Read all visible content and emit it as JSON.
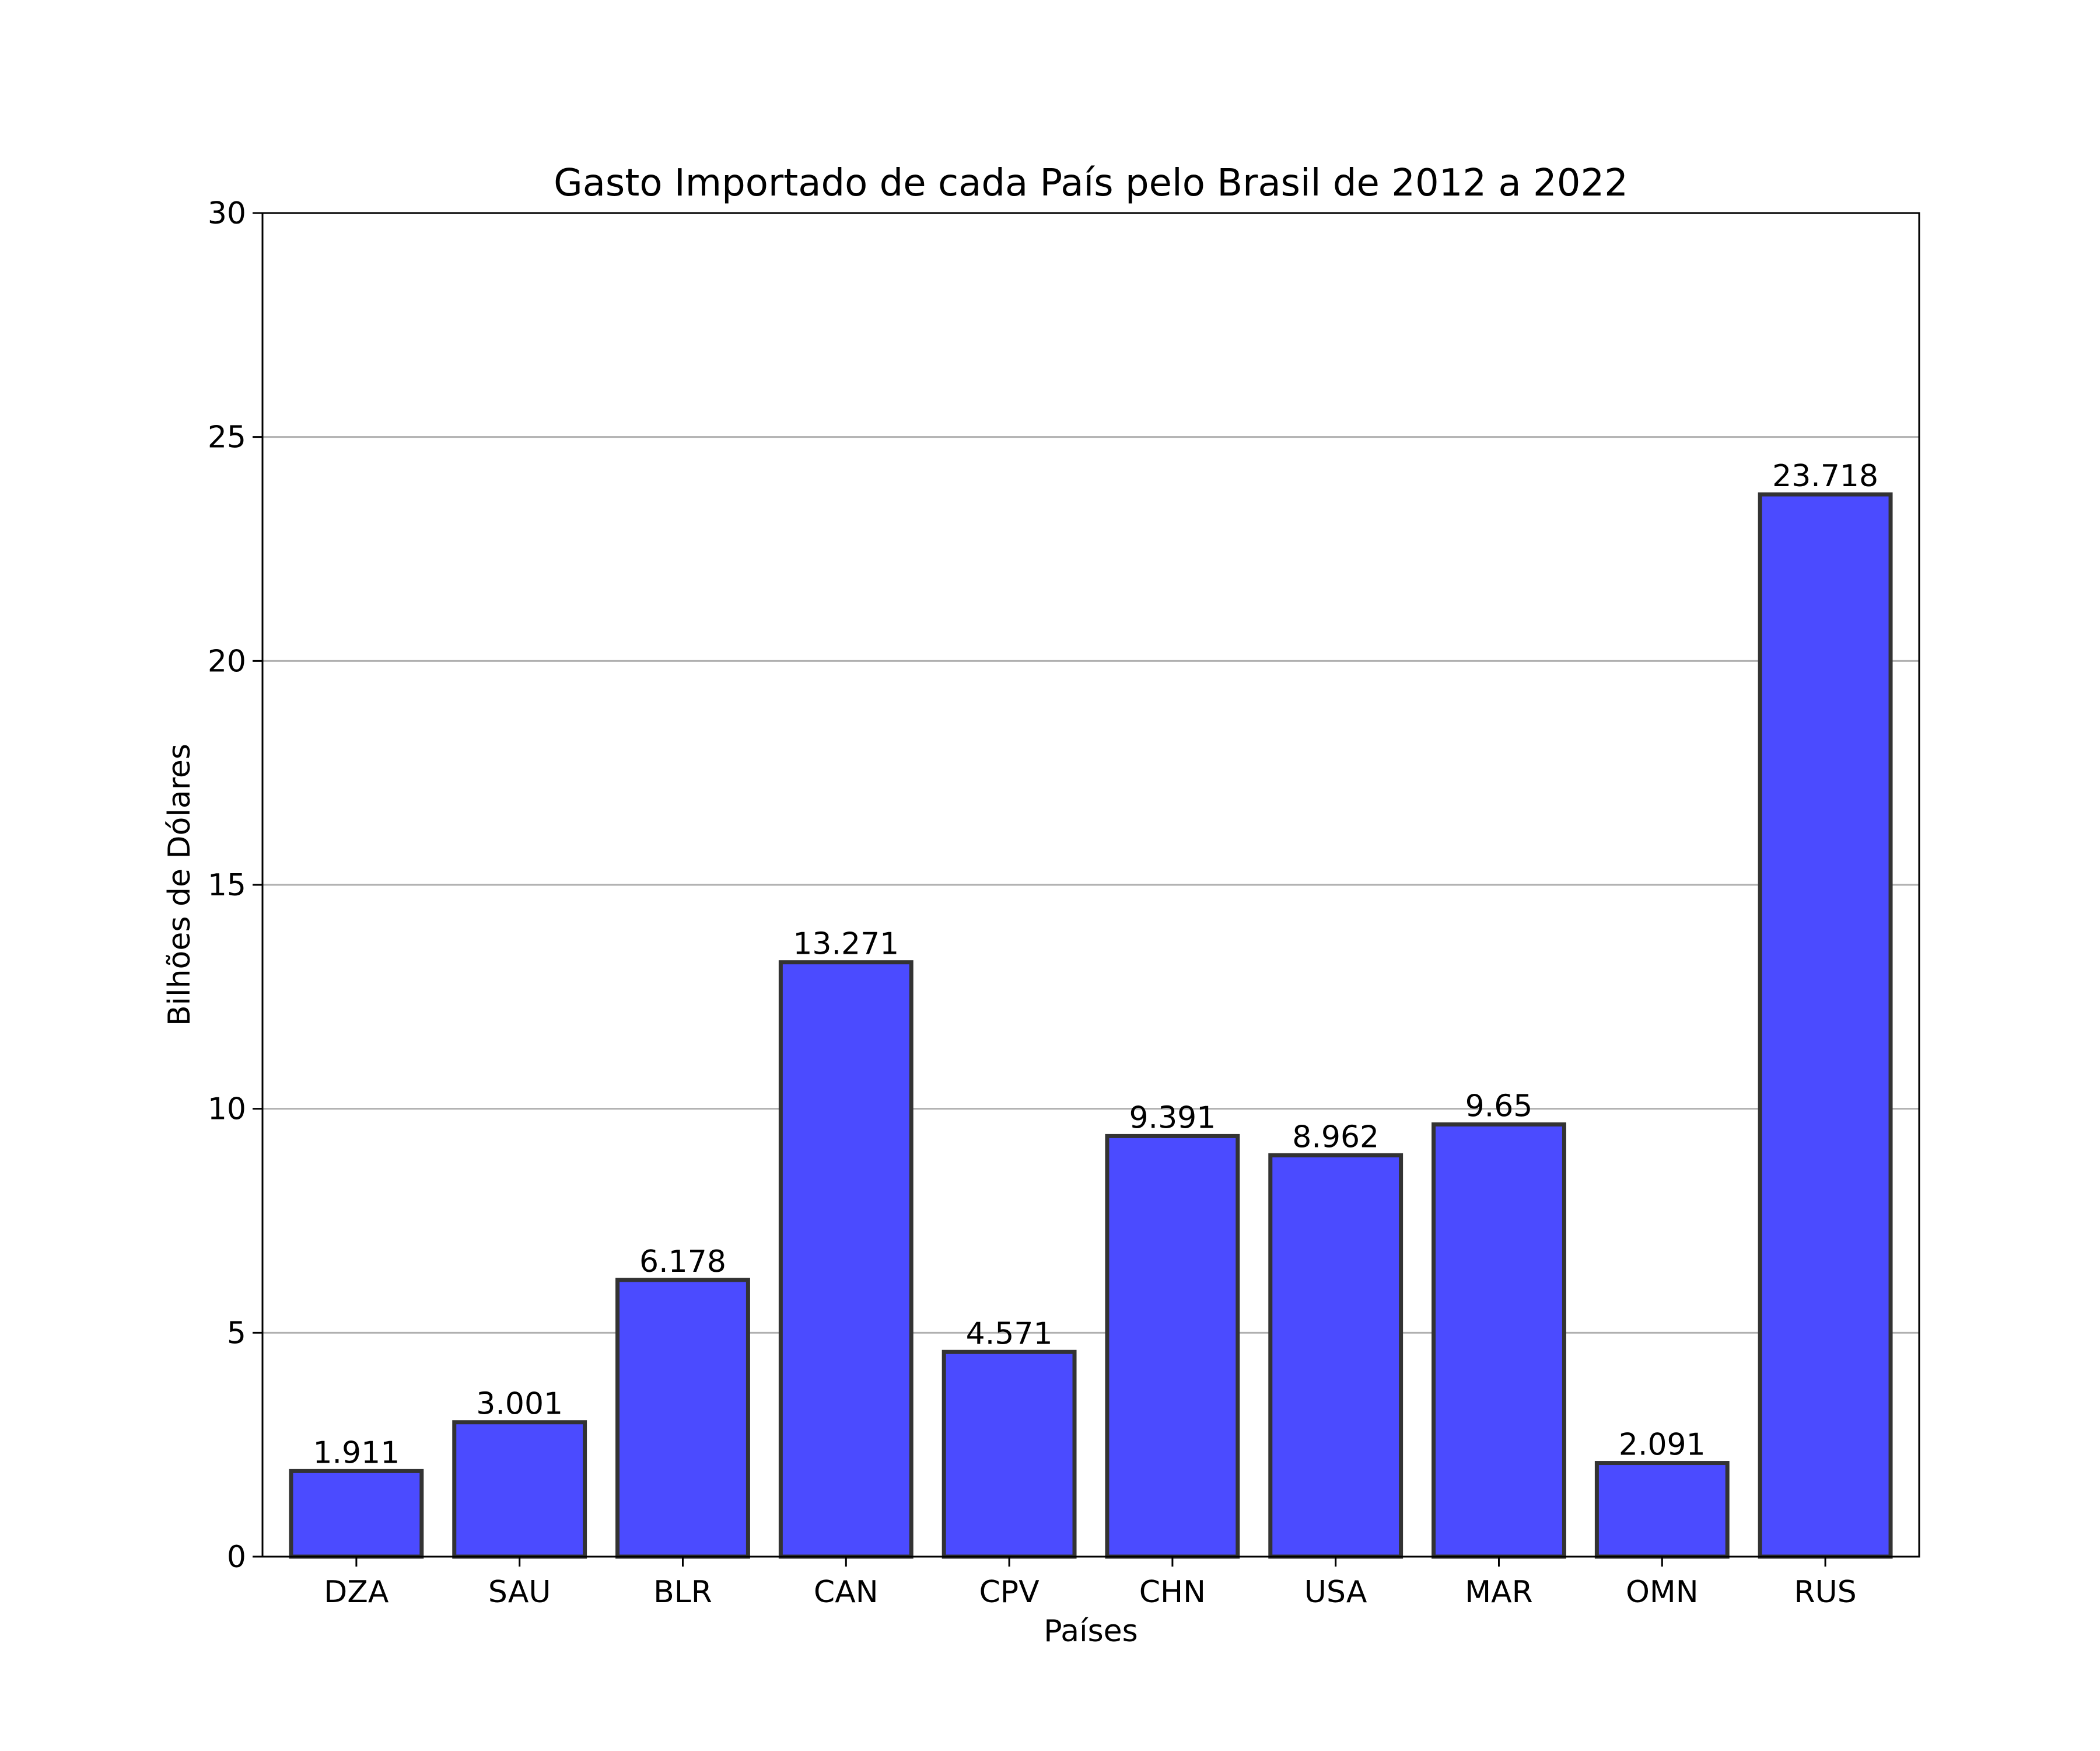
{
  "chart_data": {
    "type": "bar",
    "title": "Gasto Importado de cada País pelo Brasil de 2012 a 2022",
    "xlabel": "Países",
    "ylabel": "Bilhões de Dólares",
    "categories": [
      "DZA",
      "SAU",
      "BLR",
      "CAN",
      "CPV",
      "CHN",
      "USA",
      "MAR",
      "OMN",
      "RUS"
    ],
    "values": [
      1.911,
      3.001,
      6.178,
      13.271,
      4.571,
      9.391,
      8.962,
      9.65,
      2.091,
      23.718
    ],
    "data_labels": [
      "1.911",
      "3.001",
      "6.178",
      "13.271",
      "4.571",
      "9.391",
      "8.962",
      "9.65",
      "2.091",
      "23.718"
    ],
    "ylim": [
      0,
      30
    ],
    "yticks": [
      0,
      5,
      10,
      15,
      20,
      25,
      30
    ],
    "grid": "y",
    "legend": "none",
    "bar_color": "#4b4bff",
    "bar_edge_color": "#333333"
  }
}
